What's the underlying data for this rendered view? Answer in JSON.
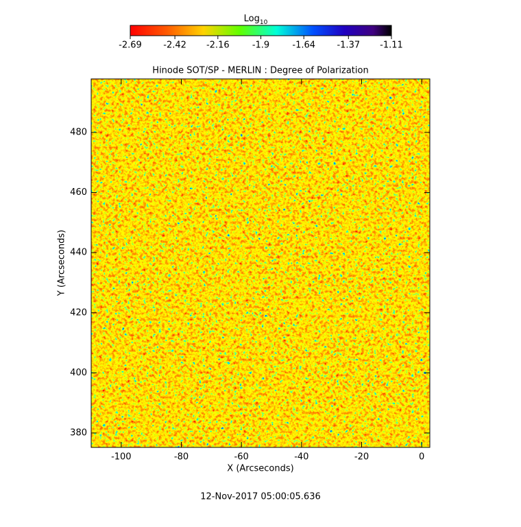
{
  "chart_data": {
    "type": "heatmap",
    "title": "Hinode SOT/SP - MERLIN : Degree of Polarization",
    "xlabel": "X (Arcseconds)",
    "ylabel": "Y (Arcseconds)",
    "xlim": [
      -110,
      2.7
    ],
    "ylim": [
      375.2,
      497.8
    ],
    "xticks": [
      -100,
      -80,
      -60,
      -40,
      -20,
      0
    ],
    "yticks": [
      380,
      400,
      420,
      440,
      460,
      480
    ],
    "colorbar": {
      "label": "Log",
      "label_subscript": "10",
      "lim": [
        -2.69,
        -1.11
      ],
      "ticks": [
        -2.69,
        -2.42,
        -2.16,
        -1.9,
        -1.64,
        -1.37,
        -1.11
      ]
    },
    "annotation": "12-Nov-2017 05:00:05.636"
  }
}
